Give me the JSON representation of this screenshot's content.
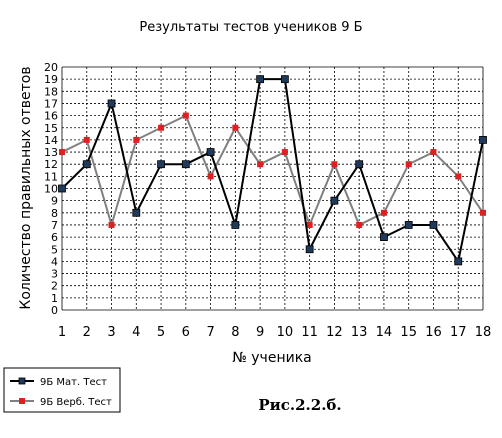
{
  "chart_data": {
    "type": "line",
    "title": "Результаты тестов учеников 9 Б",
    "xlabel": "№ ученика",
    "ylabel": "Количество правильных ответов",
    "x": [
      1,
      2,
      3,
      4,
      5,
      6,
      7,
      8,
      9,
      10,
      11,
      12,
      13,
      14,
      15,
      16,
      17,
      18
    ],
    "x_ticks": [
      "1",
      "2",
      "3",
      "4",
      "5",
      "6",
      "7",
      "8",
      "9",
      "10",
      "11",
      "12",
      "13",
      "14",
      "15",
      "16",
      "17",
      "18"
    ],
    "ylim": [
      0,
      20
    ],
    "y_ticks": [
      "0",
      "1",
      "2",
      "3",
      "4",
      "5",
      "6",
      "7",
      "8",
      "9",
      "10",
      "11",
      "12",
      "13",
      "14",
      "15",
      "16",
      "17",
      "18",
      "19",
      "20"
    ],
    "grid": true,
    "legend_position": "bottom-left",
    "series": [
      {
        "name": "9Б Мат. Тест",
        "color": "#000000",
        "marker_color": "#1f3a5a",
        "marker": "square",
        "values": [
          10,
          12,
          17,
          8,
          12,
          12,
          13,
          7,
          19,
          19,
          5,
          9,
          12,
          6,
          7,
          7,
          4,
          14
        ]
      },
      {
        "name": "9Б Верб. Тест",
        "color": "#808080",
        "marker_color": "#e02020",
        "marker": "square",
        "values": [
          13,
          14,
          7,
          14,
          15,
          16,
          11,
          15,
          12,
          13,
          7,
          12,
          7,
          8,
          12,
          13,
          11,
          8
        ]
      }
    ]
  },
  "caption": "Рис.2.2.б."
}
